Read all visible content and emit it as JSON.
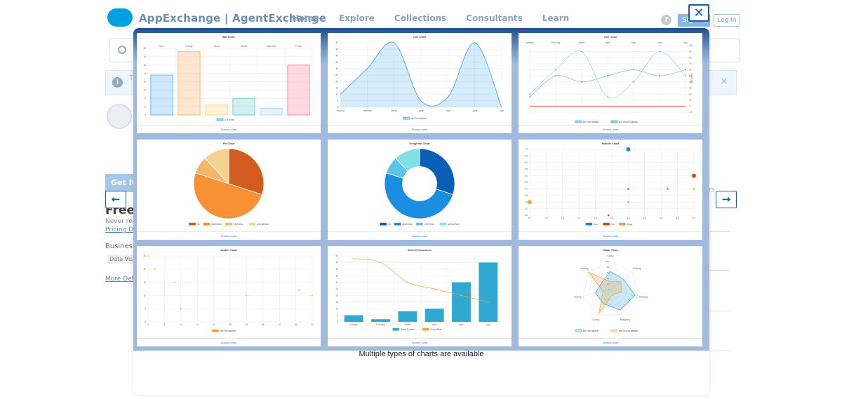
{
  "nav": {
    "brand": "AppExchange | AgentExchange",
    "links": [
      "Home",
      "Explore",
      "Collections",
      "Consultants",
      "Learn"
    ],
    "help": "?",
    "signup": "Sign Up",
    "login": "Log In"
  },
  "info": {
    "icon": "info-icon",
    "text_fragment": "T",
    "close": "×"
  },
  "listing": {
    "get_it": "Get It",
    "price": "Free",
    "never": "Never req",
    "pricing_link": "Pricing De",
    "business": "Business",
    "tag": "Data Visu",
    "more": "More Det",
    "right_fragment": "rs"
  },
  "modal": {
    "caption": "Multiple types of charts are available",
    "close": "✕",
    "prev": "←",
    "next": "→",
    "source_label": "Source code"
  },
  "chart_data": [
    {
      "type": "bar",
      "title": "Bar Chart",
      "categories": [
        "Blue",
        "Orange",
        "Yellow",
        "Green",
        "Light Blue",
        "Purple"
      ],
      "values": [
        12,
        19,
        3,
        5,
        2,
        15
      ],
      "colors": [
        "#36a2eb",
        "#ff9f40",
        "#ffcd56",
        "#4bc0c0",
        "#9ad0f5",
        "#ff6384"
      ],
      "series_name": "# of Votes",
      "yticks": [
        "20",
        "18",
        "16",
        "14",
        "12",
        "10",
        "8",
        "6",
        "4"
      ],
      "ylim": [
        0,
        20
      ]
    },
    {
      "type": "line",
      "title": "Line Chart",
      "categories": [
        "January",
        "February",
        "March",
        "April",
        "May",
        "June",
        "July"
      ],
      "values": [
        10,
        30,
        50,
        5,
        8,
        50,
        0
      ],
      "yticks": [
        "50",
        "45",
        "40",
        "35",
        "30",
        "25",
        "20",
        "15",
        "10",
        "5",
        "0"
      ],
      "series_name": "My First dataset",
      "ylim": [
        0,
        50
      ]
    },
    {
      "type": "line",
      "title": "Line Chart",
      "categories": [
        "January",
        "February",
        "March",
        "April",
        "May",
        "June",
        "July"
      ],
      "series": [
        {
          "name": "My First dataset",
          "values": [
            20,
            60,
            90,
            15,
            40,
            90,
            50
          ]
        },
        {
          "name": "My Second dataset",
          "values": [
            15,
            50,
            40,
            50,
            60,
            50,
            60
          ]
        },
        {
          "name": "",
          "values": [
            0,
            0,
            0,
            0,
            0,
            0,
            0
          ]
        }
      ],
      "ylabel": "Value axis",
      "yticks": [
        "100",
        "90",
        "80",
        "70",
        "60",
        "50",
        "40",
        "30",
        "20",
        "10",
        "0",
        "-10"
      ],
      "ylim": [
        -10,
        100
      ]
    },
    {
      "type": "pie",
      "title": "Pie Chart",
      "labels": [
        "OK",
        "WARNING",
        "CRITICAL",
        "UNKNOWN"
      ],
      "values": [
        30,
        50,
        8,
        12
      ],
      "colors": [
        "#d25b1e",
        "#f89034",
        "#f5b669",
        "#f5d28f"
      ]
    },
    {
      "type": "pie",
      "title": "Doughnut Chart",
      "labels": [
        "OK",
        "WARNING",
        "CRITICAL",
        "UNKNOWN"
      ],
      "values": [
        30,
        50,
        8,
        12
      ],
      "colors": [
        "#0b5fb8",
        "#1a8ee0",
        "#5bc6ea",
        "#7fe0e8"
      ]
    },
    {
      "type": "scatter",
      "title": "Bubble Chart",
      "series": [
        {
          "name": "Lion",
          "color": "#1b8ad6",
          "points": [
            [
              4.0,
              7.0
            ],
            [
              4.0,
              4.0
            ],
            [
              5.2,
              4.0
            ]
          ]
        },
        {
          "name": "Fox",
          "color": "#d64a1e",
          "points": [
            [
              6.0,
              5.0
            ],
            [
              3.4,
              2.0
            ]
          ]
        },
        {
          "name": "Kings",
          "color": "#f4a23a",
          "points": [
            [
              1.0,
              3.0
            ],
            [
              4.0,
              3.0
            ],
            [
              6.0,
              4.0
            ]
          ]
        }
      ],
      "xticks": [
        "1.0",
        "1.5",
        "2.0",
        "2.5",
        "3.0",
        "3.5",
        "4.0",
        "4.5",
        "5.0",
        "5.5",
        "6.0"
      ],
      "yticks": [
        "7.0",
        "6.5",
        "6.0",
        "5.5",
        "5.0",
        "4.5",
        "4.0",
        "3.5",
        "3.0",
        "2.5",
        "2.0"
      ],
      "xlim": [
        1,
        6
      ],
      "ylim": [
        2,
        7
      ]
    },
    {
      "type": "scatter",
      "title": "Scatter Chart",
      "series": [
        {
          "name": "My First dataset",
          "color": "#f4a23a",
          "points": [
            [
              0,
              25
            ],
            [
              2,
              20
            ],
            [
              8,
              15
            ],
            [
              10,
              5
            ],
            [
              30,
              10
            ],
            [
              46,
              12
            ],
            [
              50,
              10
            ]
          ]
        }
      ],
      "xticks": [
        "0",
        "5",
        "10",
        "15",
        "20",
        "25",
        "30",
        "35",
        "40",
        "45",
        "50"
      ],
      "yticks": [
        "25",
        "20",
        "15",
        "10",
        "5",
        "0"
      ],
      "xlim": [
        0,
        50
      ],
      "ylim": [
        0,
        25
      ]
    },
    {
      "type": "bar",
      "title": "Sales Performance",
      "categories": [
        "January",
        "February",
        "March",
        "April",
        "May",
        "June"
      ],
      "series": [
        {
          "name": "Order Number",
          "type": "bar",
          "color": "#2fa8d2",
          "values": [
            5,
            2,
            8,
            10,
            30,
            45
          ]
        },
        {
          "name": "Churn Rate",
          "type": "line",
          "color": "#f4a23a",
          "values": [
            48,
            45,
            30,
            25,
            20,
            15
          ]
        }
      ],
      "yticks": [
        "50",
        "45",
        "40",
        "35",
        "30",
        "25",
        "20",
        "15",
        "10",
        "5",
        "0"
      ],
      "ylim": [
        0,
        50
      ]
    },
    {
      "type": "radar",
      "title": "Radar Chart",
      "labels": [
        "Eating",
        "Drinking",
        "Sleeping",
        "Designing",
        "Coding",
        "Cycling",
        "Running"
      ],
      "series": [
        {
          "name": "My First dataset",
          "color": "#2fa8d2",
          "values": [
            65,
            59,
            90,
            81,
            56,
            55,
            40
          ]
        },
        {
          "name": "My Second dataset",
          "color": "#f4a23a",
          "values": [
            28,
            48,
            40,
            19,
            96,
            27,
            100
          ]
        }
      ],
      "ticks": [
        "100",
        "80",
        "60",
        "40",
        "20",
        "0"
      ]
    }
  ]
}
